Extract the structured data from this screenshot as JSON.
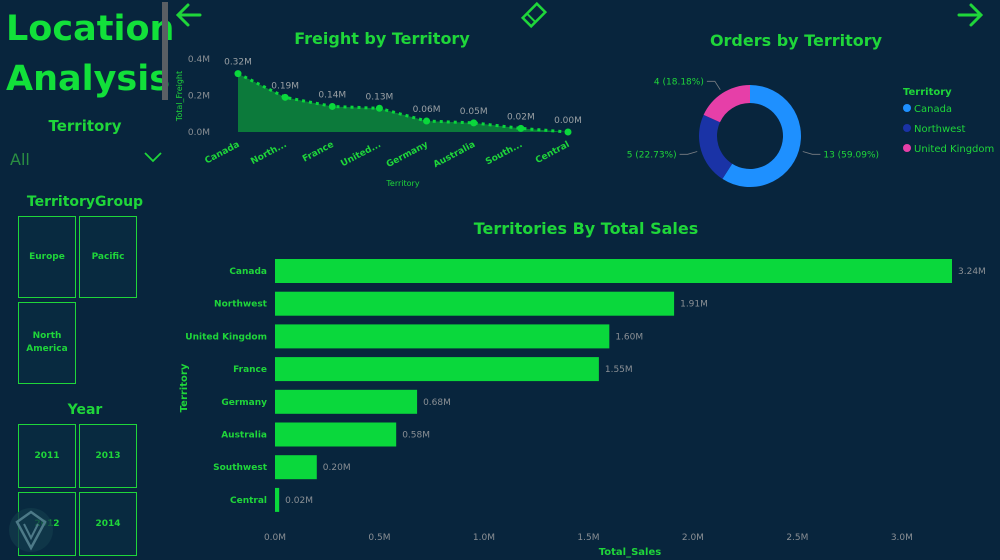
{
  "page": {
    "title_line1": "Location",
    "title_line2": "Analysis"
  },
  "nav": {
    "back_icon": "arrow-left-icon",
    "bookmark_icon": "diamond-bookmark-icon",
    "forward_icon": "arrow-right-icon"
  },
  "colors": {
    "background": "#08253d",
    "accent_green": "#1fd63a",
    "bar_green": "#0ad83c",
    "area_fill": "#0d8a3b",
    "canada": "#1e90ff",
    "northwest": "#1a33a6",
    "uk": "#e63fa8"
  },
  "slicers": {
    "territory": {
      "title": "Territory",
      "value": "All",
      "icon": "chevron-down-icon"
    },
    "territory_group": {
      "title": "TerritoryGroup",
      "items": [
        "Europe",
        "Pacific",
        "North America"
      ]
    },
    "year": {
      "title": "Year",
      "items": [
        "2011",
        "2013",
        "2012",
        "2014"
      ]
    }
  },
  "chart_data": [
    {
      "type": "area",
      "title": "Freight by Territory",
      "xlabel": "Territory",
      "ylabel": "Total_Freight",
      "ylim": [
        0,
        0.4
      ],
      "y_ticks": [
        "0.4M",
        "0.2M",
        "0.0M"
      ],
      "categories": [
        "Canada",
        "North...",
        "France",
        "United...",
        "Germany",
        "Australia",
        "South...",
        "Central"
      ],
      "values": [
        0.32,
        0.19,
        0.14,
        0.13,
        0.06,
        0.05,
        0.02,
        0.0
      ],
      "data_labels": [
        "0.32M",
        "0.19M",
        "0.14M",
        "0.13M",
        "0.06M",
        "0.05M",
        "0.02M",
        "0.00M"
      ]
    },
    {
      "type": "pie",
      "title": "Orders by Territory",
      "legend_title": "Territory",
      "legend_position": "right",
      "categories": [
        "Canada",
        "Northwest",
        "United Kingdom"
      ],
      "values": [
        13,
        5,
        4
      ],
      "data_labels": [
        "13 (59.09%)",
        "5 (22.73%)",
        "4 (18.18%)"
      ]
    },
    {
      "type": "bar",
      "title": "Territories By Total Sales",
      "xlabel": "Total_Sales",
      "ylabel": "Territory",
      "xlim": [
        0,
        3.24
      ],
      "x_ticks": [
        "0.0M",
        "0.5M",
        "1.0M",
        "1.5M",
        "2.0M",
        "2.5M",
        "3.0M"
      ],
      "categories": [
        "Canada",
        "Northwest",
        "United Kingdom",
        "France",
        "Germany",
        "Australia",
        "Southwest",
        "Central"
      ],
      "values": [
        3.24,
        1.91,
        1.6,
        1.55,
        0.68,
        0.58,
        0.2,
        0.02
      ],
      "data_labels": [
        "3.24M",
        "1.91M",
        "1.60M",
        "1.55M",
        "0.68M",
        "0.58M",
        "0.20M",
        "0.02M"
      ]
    }
  ]
}
